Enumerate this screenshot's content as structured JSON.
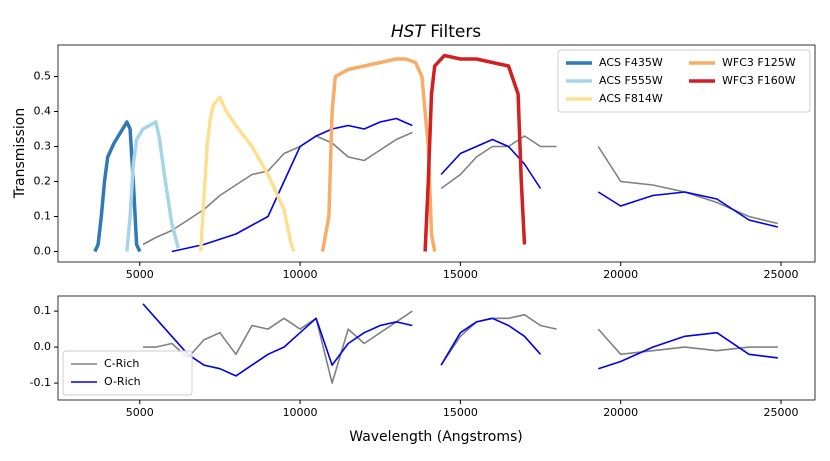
{
  "chart_data": [
    {
      "type": "line",
      "title_emphasis": "HST",
      "title": "Filters",
      "ylabel": "Transmission",
      "xlim": [
        2450,
        26060
      ],
      "ylim": [
        -0.03,
        0.59
      ],
      "xticks": [
        5000,
        10000,
        15000,
        20000,
        25000
      ],
      "yticks": [
        {
          "value": 0,
          "label": "0.0"
        },
        0.1,
        0.2,
        0.3,
        0.4,
        0.5
      ],
      "legend": "upper right",
      "legend_columns": 2,
      "series": [
        {
          "name": "C-Rich",
          "color": "#808080",
          "width": 1.6,
          "legend": false,
          "x": [
            5100,
            5500,
            6000,
            6500,
            7000,
            7500,
            8000,
            8500,
            9000,
            9500,
            10000,
            10500,
            11000,
            11500,
            12000,
            12500,
            13000,
            13500,
            null,
            14400,
            15000,
            15500,
            16000,
            16500,
            17000,
            17500,
            18000,
            null,
            19300,
            20000,
            21000,
            22000,
            23000,
            24000,
            24900
          ],
          "values": [
            0.02,
            0.04,
            0.06,
            0.09,
            0.12,
            0.16,
            0.19,
            0.22,
            0.23,
            0.28,
            0.3,
            0.33,
            0.31,
            0.27,
            0.26,
            0.29,
            0.32,
            0.34,
            null,
            0.18,
            0.22,
            0.27,
            0.3,
            0.3,
            0.33,
            0.3,
            0.3,
            null,
            0.3,
            0.2,
            0.19,
            0.17,
            0.14,
            0.1,
            0.08
          ]
        },
        {
          "name": "O-Rich",
          "color": "#0000ee",
          "width": 1.6,
          "legend": false,
          "x": [
            6000,
            7000,
            8000,
            9000,
            9500,
            10000,
            10500,
            11000,
            11500,
            12000,
            12500,
            13000,
            13500,
            null,
            14400,
            15000,
            15500,
            16000,
            16500,
            17000,
            17500,
            null,
            19300,
            20000,
            21000,
            22000,
            23000,
            24000,
            24900
          ],
          "values": [
            0.0,
            0.02,
            0.05,
            0.1,
            0.2,
            0.3,
            0.33,
            0.35,
            0.36,
            0.35,
            0.37,
            0.38,
            0.36,
            null,
            0.22,
            0.28,
            0.3,
            0.32,
            0.3,
            0.25,
            0.18,
            null,
            0.17,
            0.13,
            0.16,
            0.17,
            0.15,
            0.09,
            0.07
          ]
        },
        {
          "name": "ACS F435W",
          "color": "#2f7ab5",
          "width": 3.5,
          "x": [
            3600,
            3700,
            3800,
            3900,
            4000,
            4200,
            4400,
            4600,
            4700,
            4800,
            4900,
            5000
          ],
          "values": [
            0,
            0.02,
            0.1,
            0.2,
            0.27,
            0.31,
            0.34,
            0.37,
            0.35,
            0.2,
            0.02,
            0
          ]
        },
        {
          "name": "ACS F555W",
          "color": "#a6d5e8",
          "width": 3.5,
          "x": [
            4600,
            4700,
            4800,
            4900,
            5100,
            5300,
            5500,
            5600,
            5800,
            6000,
            6200
          ],
          "values": [
            0,
            0.1,
            0.25,
            0.32,
            0.35,
            0.36,
            0.37,
            0.33,
            0.2,
            0.08,
            0.01
          ]
        },
        {
          "name": "ACS F814W",
          "color": "#fde08f",
          "width": 3.5,
          "x": [
            6900,
            7000,
            7100,
            7200,
            7300,
            7500,
            7700,
            8000,
            8500,
            9000,
            9500,
            9700,
            9800
          ],
          "values": [
            0,
            0.15,
            0.3,
            0.38,
            0.42,
            0.44,
            0.4,
            0.36,
            0.3,
            0.22,
            0.12,
            0.03,
            0
          ]
        },
        {
          "name": "WFC3 F125W",
          "color": "#f8ac65",
          "width": 3.5,
          "x": [
            10700,
            10900,
            11000,
            11100,
            11500,
            12000,
            12500,
            13000,
            13300,
            13600,
            13800,
            14000,
            14100,
            14200
          ],
          "values": [
            0,
            0.1,
            0.4,
            0.5,
            0.52,
            0.53,
            0.54,
            0.55,
            0.55,
            0.54,
            0.5,
            0.3,
            0.05,
            0
          ]
        },
        {
          "name": "WFC3 F160W",
          "color": "#d21f22",
          "width": 3.5,
          "x": [
            13900,
            14000,
            14100,
            14200,
            14500,
            15000,
            15500,
            16000,
            16500,
            16800,
            16900,
            17000
          ],
          "values": [
            0,
            0.2,
            0.45,
            0.53,
            0.56,
            0.55,
            0.55,
            0.54,
            0.53,
            0.45,
            0.2,
            0.02
          ]
        }
      ]
    },
    {
      "type": "line",
      "xlabel": "Wavelength (Angstroms)",
      "xlim": [
        2450,
        26060
      ],
      "ylim": [
        -0.147,
        0.142
      ],
      "xticks": [
        5000,
        10000,
        15000,
        20000,
        25000
      ],
      "yticks": [
        0.1,
        {
          "value": 0,
          "label": "0.0"
        },
        -0.1
      ],
      "legend": "lower left",
      "legend_columns": 1,
      "series": [
        {
          "name": "C-Rich",
          "color": "#808080",
          "width": 1.6,
          "x": [
            5100,
            5500,
            6000,
            6500,
            7000,
            7500,
            8000,
            8500,
            9000,
            9500,
            10000,
            10500,
            11000,
            11500,
            12000,
            12500,
            13000,
            13500,
            null,
            14400,
            15000,
            15500,
            16000,
            16500,
            17000,
            17500,
            18000,
            null,
            19300,
            20000,
            21000,
            22000,
            23000,
            24000,
            24900
          ],
          "values": [
            0,
            0,
            0.01,
            -0.03,
            0.02,
            0.04,
            -0.02,
            0.06,
            0.05,
            0.08,
            0.05,
            0.08,
            -0.1,
            0.05,
            0.01,
            0.04,
            0.07,
            0.1,
            null,
            -0.05,
            0.03,
            0.07,
            0.08,
            0.08,
            0.09,
            0.06,
            0.05,
            null,
            0.05,
            -0.02,
            -0.01,
            0.0,
            -0.01,
            0.0,
            0.0
          ]
        },
        {
          "name": "O-Rich",
          "color": "#0000ee",
          "width": 1.6,
          "x": [
            5100,
            5500,
            6000,
            6500,
            7000,
            7500,
            8000,
            8500,
            9000,
            9500,
            10000,
            10500,
            11000,
            11500,
            12000,
            12500,
            13000,
            13500,
            null,
            14400,
            15000,
            15500,
            16000,
            16500,
            17000,
            17500,
            null,
            19300,
            20000,
            21000,
            22000,
            23000,
            24000,
            24900
          ],
          "values": [
            0.12,
            0.08,
            0.03,
            -0.02,
            -0.05,
            -0.06,
            -0.08,
            -0.05,
            -0.02,
            0.0,
            0.04,
            0.08,
            -0.05,
            0.01,
            0.04,
            0.06,
            0.07,
            0.06,
            null,
            -0.05,
            0.04,
            0.07,
            0.08,
            0.06,
            0.03,
            -0.02,
            null,
            -0.06,
            -0.04,
            0.0,
            0.03,
            0.04,
            -0.02,
            -0.03
          ]
        }
      ]
    }
  ]
}
